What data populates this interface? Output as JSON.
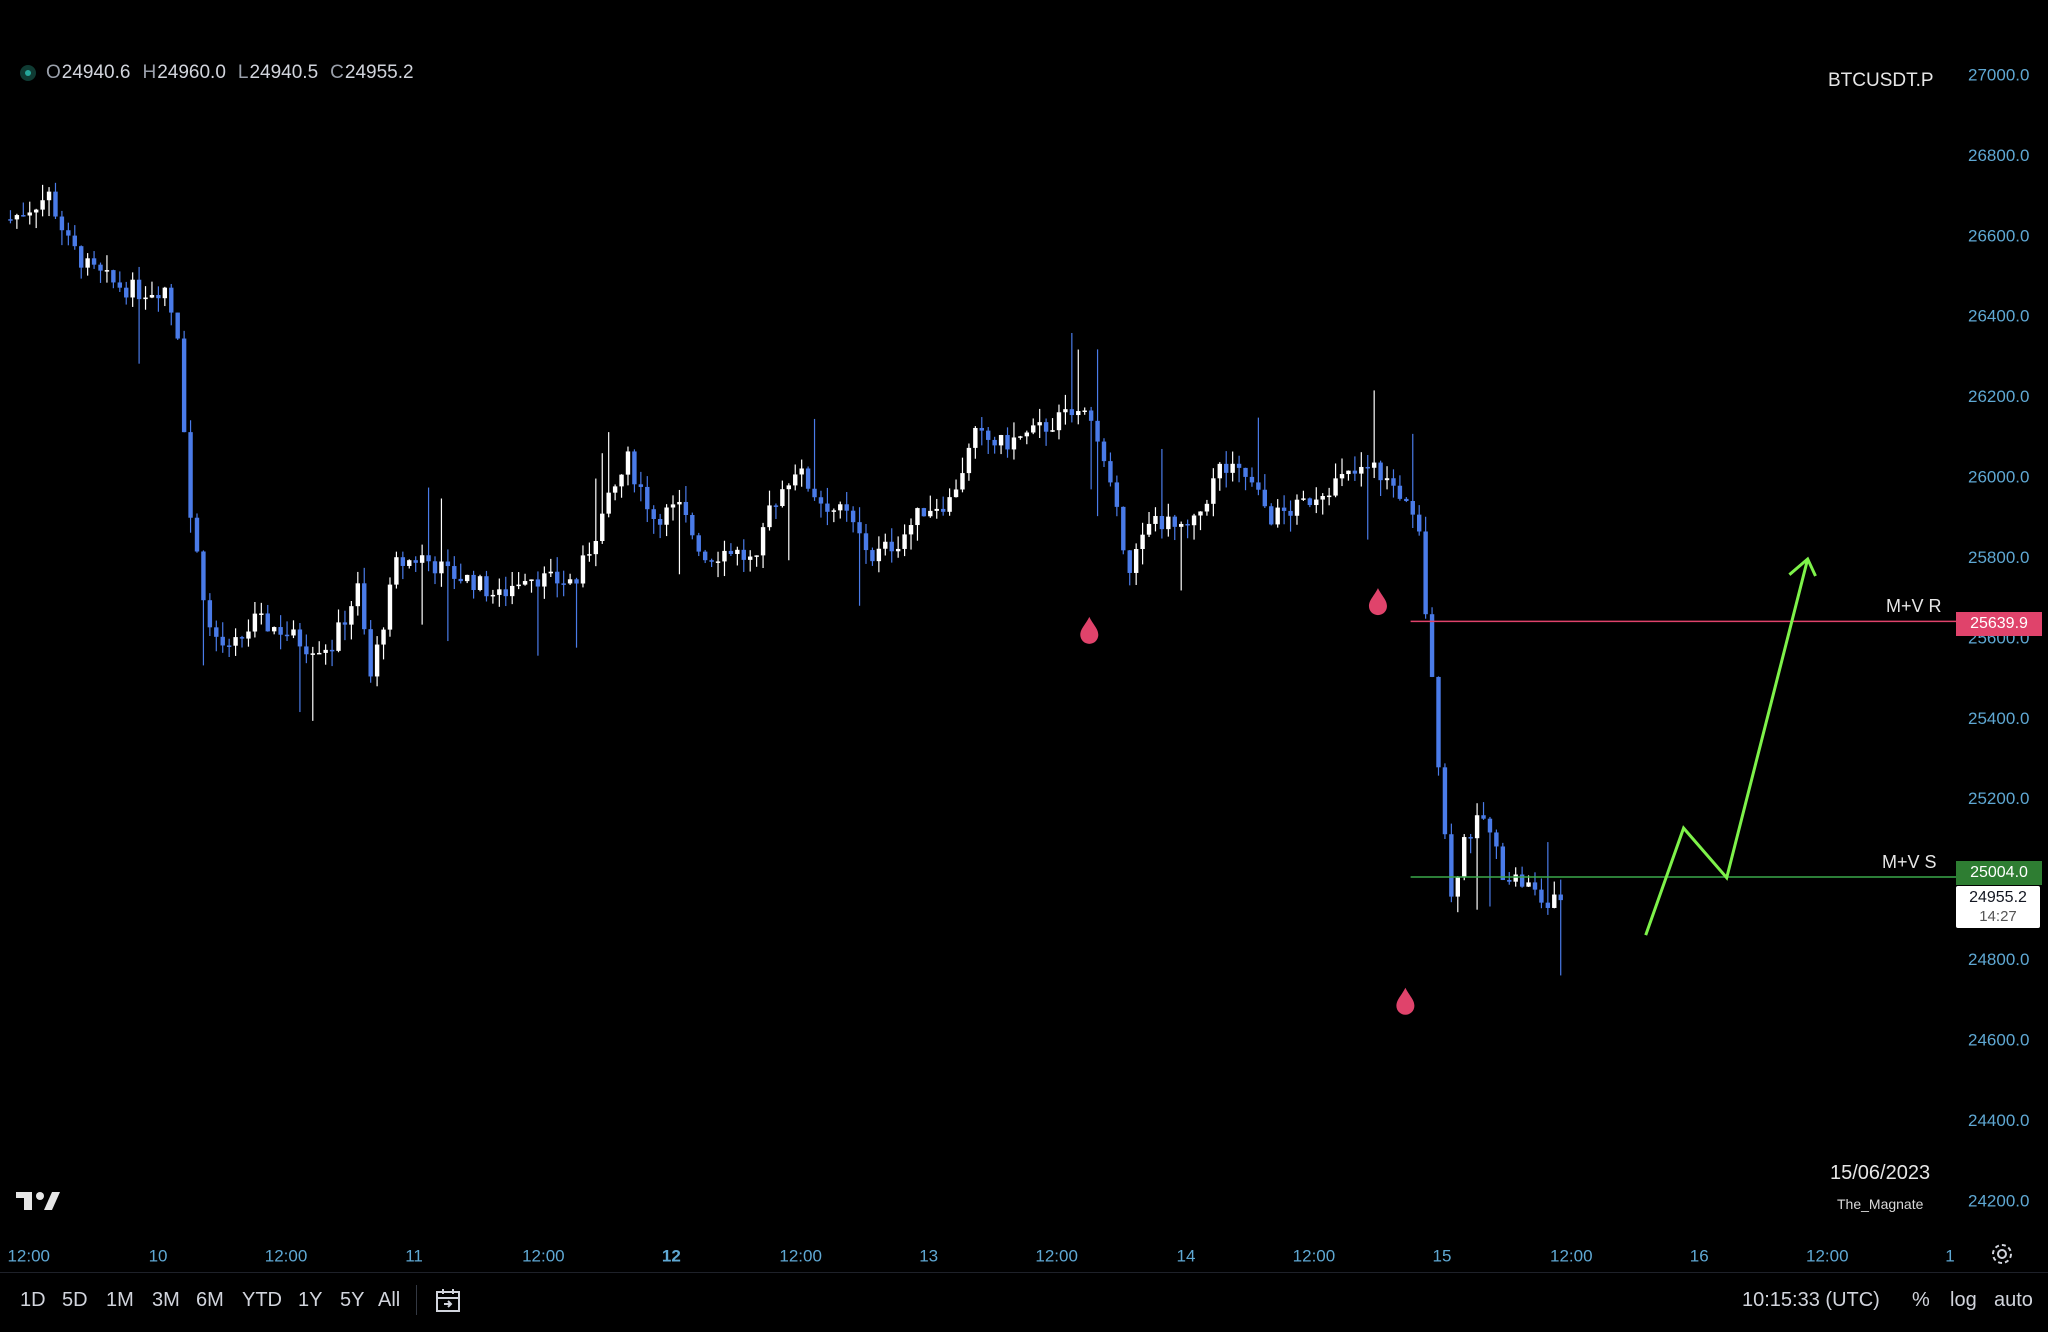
{
  "header": {
    "ohlc": [
      {
        "key": "O",
        "value": "24940.6"
      },
      {
        "key": "H",
        "value": "24960.0"
      },
      {
        "key": "L",
        "value": "24940.5"
      },
      {
        "key": "C",
        "value": "24955.2"
      }
    ],
    "symbol": "BTCUSDT.P"
  },
  "watermark": {
    "date": "15/06/2023",
    "author": "The_Magnate"
  },
  "toolbar": {
    "ranges": [
      "1D",
      "5D",
      "1M",
      "3M",
      "6M",
      "YTD",
      "1Y",
      "5Y",
      "All"
    ],
    "clock": "10:15:33 (UTC)",
    "percent": "%",
    "log": "log",
    "auto": "auto"
  },
  "levels": {
    "resistance": {
      "label": "M+V R",
      "price": "25639.9",
      "color": "#e0436b"
    },
    "support": {
      "label": "M+V S",
      "price": "25004.0",
      "color": "#2e7d32"
    }
  },
  "current_price": {
    "price": "24955.2",
    "countdown": "14:27"
  },
  "colors": {
    "up": "#ffffff",
    "down": "#4a7be8",
    "arrow": "#7ef24a",
    "marker": "#e0436b",
    "axis_text": "#5fa8d3"
  },
  "chart_data": {
    "type": "candlestick",
    "y_axis_ticks": [
      "27000.0",
      "26800.0",
      "26600.0",
      "26400.0",
      "26200.0",
      "26000.0",
      "25800.0",
      "25600.0",
      "25400.0",
      "25200.0",
      "24800.0",
      "24600.0",
      "24400.0",
      "24200.0"
    ],
    "x_axis_ticks": [
      {
        "label": "12:00",
        "bold": false
      },
      {
        "label": "10",
        "bold": false
      },
      {
        "label": "12:00",
        "bold": false
      },
      {
        "label": "11",
        "bold": false
      },
      {
        "label": "12:00",
        "bold": false
      },
      {
        "label": "12",
        "bold": true
      },
      {
        "label": "12:00",
        "bold": false
      },
      {
        "label": "13",
        "bold": false
      },
      {
        "label": "12:00",
        "bold": false
      },
      {
        "label": "14",
        "bold": false
      },
      {
        "label": "12:00",
        "bold": false
      },
      {
        "label": "15",
        "bold": false
      },
      {
        "label": "12:00",
        "bold": false
      },
      {
        "label": "16",
        "bold": false
      },
      {
        "label": "12:00",
        "bold": false
      },
      {
        "label": "1",
        "bold": false
      }
    ],
    "price_path": [
      [
        0,
        26640
      ],
      [
        3,
        26700
      ],
      [
        4.5,
        26580
      ],
      [
        6,
        26520
      ],
      [
        8,
        26480
      ],
      [
        10,
        26460
      ],
      [
        12,
        26470
      ],
      [
        13,
        26360
      ],
      [
        14,
        25900
      ],
      [
        15.5,
        25620
      ],
      [
        17,
        25560
      ],
      [
        19,
        25640
      ],
      [
        21,
        25620
      ],
      [
        23,
        25580
      ],
      [
        25,
        25580
      ],
      [
        27,
        25720
      ],
      [
        28,
        25500
      ],
      [
        30,
        25780
      ],
      [
        32,
        25800
      ],
      [
        34,
        25760
      ],
      [
        36,
        25740
      ],
      [
        38,
        25700
      ],
      [
        40,
        25760
      ],
      [
        42,
        25740
      ],
      [
        44,
        25740
      ],
      [
        46,
        25900
      ],
      [
        48,
        26040
      ],
      [
        50,
        25900
      ],
      [
        52,
        25920
      ],
      [
        54,
        25800
      ],
      [
        56,
        25820
      ],
      [
        58,
        25780
      ],
      [
        59,
        25920
      ],
      [
        61,
        26020
      ],
      [
        63,
        25940
      ],
      [
        65,
        25900
      ],
      [
        67,
        25800
      ],
      [
        69,
        25840
      ],
      [
        71,
        25920
      ],
      [
        73,
        25940
      ],
      [
        75,
        26100
      ],
      [
        77,
        26080
      ],
      [
        79,
        26100
      ],
      [
        82,
        26150
      ],
      [
        84,
        26160
      ],
      [
        86,
        25900
      ],
      [
        87,
        25780
      ],
      [
        89,
        25900
      ],
      [
        91,
        25860
      ],
      [
        92,
        25880
      ],
      [
        94,
        26020
      ],
      [
        96,
        26000
      ],
      [
        98,
        25900
      ],
      [
        100,
        25920
      ],
      [
        102,
        25970
      ],
      [
        104,
        26000
      ],
      [
        106,
        26020
      ],
      [
        108,
        25960
      ],
      [
        109.5,
        25850
      ],
      [
        111,
        25300
      ],
      [
        112,
        24950
      ],
      [
        113,
        25100
      ],
      [
        114.5,
        25150
      ],
      [
        116,
        25020
      ],
      [
        118,
        24980
      ],
      [
        119.5,
        24930
      ],
      [
        120.5,
        24955
      ]
    ],
    "projection": [
      [
        1260,
        716
      ],
      [
        1289,
        634
      ],
      [
        1322,
        672
      ],
      [
        1384,
        428
      ]
    ],
    "liquidity_markers": [
      {
        "price": 25660,
        "index": 85
      },
      {
        "price": 25720,
        "index": 107.5
      },
      {
        "price": 24600,
        "index": 109.5
      }
    ]
  }
}
